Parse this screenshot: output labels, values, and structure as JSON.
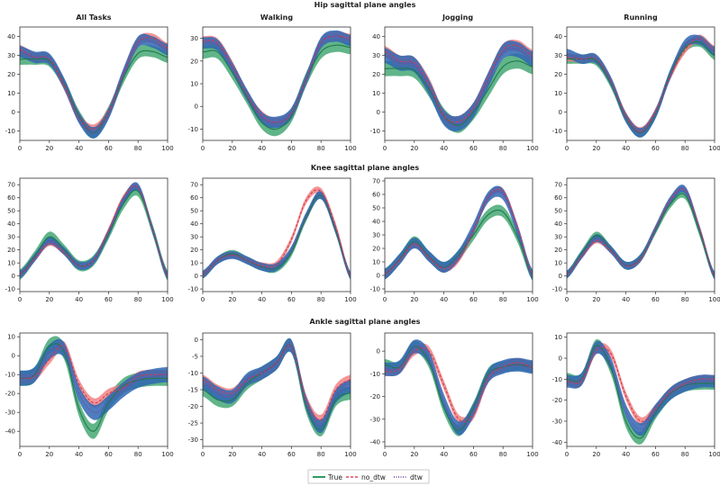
{
  "figure": {
    "row_titles": [
      "Hip sagittal plane angles",
      "Knee sagittal plane angles",
      "Ankle sagittal plane angles"
    ],
    "col_titles": [
      "All Tasks",
      "Walking",
      "Jogging",
      "Running"
    ]
  },
  "legend": {
    "items": [
      {
        "label": "True",
        "color": "#2e9a63",
        "style": "solid"
      },
      {
        "label": "no_dtw",
        "color": "#e8465f",
        "style": "dashed"
      },
      {
        "label": "dtw",
        "color": "#6a3d9a",
        "style": "dotted"
      }
    ]
  },
  "colors": {
    "true_band": "#3aa36b",
    "no_dtw_band": "#f07a7a",
    "dtw_band": "#2f66b3",
    "dtw_overlay": "#7b3fa0"
  },
  "chart_data": [
    {
      "type": "line",
      "joint": "Hip",
      "task": "All Tasks",
      "xlim": [
        0,
        100
      ],
      "ylim": [
        -15,
        45
      ],
      "yticks": [
        -10,
        0,
        10,
        20,
        30,
        40
      ],
      "xticks": [
        0,
        20,
        40,
        60,
        80,
        100
      ],
      "x": [
        0,
        10,
        20,
        30,
        40,
        50,
        60,
        70,
        80,
        90,
        100
      ],
      "series": [
        {
          "name": "True",
          "values": [
            28,
            28,
            27,
            15,
            -2,
            -11,
            0,
            18,
            31,
            32,
            29
          ],
          "spread": 3
        },
        {
          "name": "no_dtw",
          "values": [
            33,
            29,
            28,
            14,
            -3,
            -9,
            0,
            20,
            37,
            39,
            34
          ],
          "spread": 2.5
        },
        {
          "name": "dtw",
          "values": [
            32,
            29,
            28,
            15,
            -3,
            -11,
            -1,
            20,
            37,
            37,
            33
          ],
          "spread": 3
        }
      ]
    },
    {
      "type": "line",
      "joint": "Hip",
      "task": "Walking",
      "xlim": [
        0,
        100
      ],
      "ylim": [
        -15,
        35
      ],
      "yticks": [
        -10,
        0,
        10,
        20,
        30
      ],
      "xticks": [
        0,
        20,
        40,
        60,
        80,
        100
      ],
      "x": [
        0,
        10,
        20,
        30,
        40,
        50,
        60,
        70,
        80,
        90,
        100
      ],
      "series": [
        {
          "name": "True",
          "values": [
            24,
            24,
            15,
            4,
            -7,
            -10,
            -4,
            12,
            24,
            27,
            26
          ],
          "spread": 3
        },
        {
          "name": "no_dtw",
          "values": [
            29,
            28,
            18,
            5,
            -4,
            -7,
            -3,
            12,
            28,
            31,
            30
          ],
          "spread": 2
        },
        {
          "name": "dtw",
          "values": [
            28,
            27,
            17,
            5,
            -5,
            -7,
            -3,
            12,
            28,
            31,
            29
          ],
          "spread": 2.5
        }
      ]
    },
    {
      "type": "line",
      "joint": "Hip",
      "task": "Jogging",
      "xlim": [
        0,
        100
      ],
      "ylim": [
        -15,
        45
      ],
      "yticks": [
        -10,
        0,
        10,
        20,
        30,
        40
      ],
      "xticks": [
        0,
        20,
        40,
        60,
        80,
        100
      ],
      "x": [
        0,
        10,
        20,
        30,
        40,
        50,
        60,
        70,
        80,
        90,
        100
      ],
      "series": [
        {
          "name": "True",
          "values": [
            23,
            23,
            22,
            12,
            -2,
            -7,
            0,
            12,
            24,
            27,
            24
          ],
          "spread": 4
        },
        {
          "name": "no_dtw",
          "values": [
            32,
            27,
            26,
            15,
            -2,
            -5,
            2,
            18,
            33,
            35,
            30
          ],
          "spread": 3
        },
        {
          "name": "dtw",
          "values": [
            30,
            26,
            25,
            13,
            -3,
            -6,
            1,
            17,
            32,
            33,
            28
          ],
          "spread": 4
        }
      ]
    },
    {
      "type": "line",
      "joint": "Hip",
      "task": "Running",
      "xlim": [
        0,
        100
      ],
      "ylim": [
        -15,
        45
      ],
      "yticks": [
        -10,
        0,
        10,
        20,
        30,
        40
      ],
      "xticks": [
        0,
        20,
        40,
        60,
        80,
        100
      ],
      "x": [
        0,
        10,
        20,
        30,
        40,
        50,
        60,
        70,
        80,
        90,
        100
      ],
      "series": [
        {
          "name": "True",
          "values": [
            28,
            28,
            27,
            15,
            -3,
            -11,
            -1,
            20,
            34,
            37,
            30
          ],
          "spread": 2.5
        },
        {
          "name": "no_dtw",
          "values": [
            29,
            28,
            28,
            16,
            -2,
            -10,
            0,
            19,
            33,
            39,
            33
          ],
          "spread": 2
        },
        {
          "name": "dtw",
          "values": [
            31,
            28,
            28,
            16,
            -3,
            -11,
            -1,
            20,
            36,
            38,
            32
          ],
          "spread": 2.5
        }
      ]
    },
    {
      "type": "line",
      "joint": "Knee",
      "task": "All Tasks",
      "xlim": [
        0,
        100
      ],
      "ylim": [
        -12,
        75
      ],
      "yticks": [
        -10,
        0,
        10,
        20,
        30,
        40,
        50,
        60,
        70
      ],
      "xticks": [
        0,
        20,
        40,
        60,
        80,
        100
      ],
      "x": [
        0,
        10,
        20,
        30,
        40,
        50,
        60,
        70,
        80,
        90,
        100
      ],
      "series": [
        {
          "name": "True",
          "values": [
            1,
            15,
            30,
            20,
            8,
            12,
            32,
            55,
            65,
            35,
            0
          ],
          "spread": 4
        },
        {
          "name": "no_dtw",
          "values": [
            1,
            13,
            25,
            18,
            8,
            12,
            35,
            60,
            68,
            35,
            0
          ],
          "spread": 2
        },
        {
          "name": "dtw",
          "values": [
            1,
            14,
            27,
            19,
            8,
            12,
            33,
            58,
            68,
            35,
            0
          ],
          "spread": 3
        }
      ]
    },
    {
      "type": "line",
      "joint": "Knee",
      "task": "Walking",
      "xlim": [
        0,
        100
      ],
      "ylim": [
        -12,
        75
      ],
      "yticks": [
        -10,
        0,
        10,
        20,
        30,
        40,
        50,
        60,
        70
      ],
      "xticks": [
        0,
        20,
        40,
        60,
        80,
        100
      ],
      "x": [
        0,
        10,
        20,
        30,
        40,
        50,
        60,
        70,
        80,
        90,
        100
      ],
      "series": [
        {
          "name": "True",
          "values": [
            1,
            12,
            17,
            12,
            7,
            6,
            18,
            45,
            62,
            35,
            0
          ],
          "spread": 3
        },
        {
          "name": "no_dtw",
          "values": [
            1,
            12,
            16,
            12,
            8,
            9,
            28,
            58,
            65,
            38,
            0
          ],
          "spread": 2.5
        },
        {
          "name": "dtw",
          "values": [
            1,
            12,
            16,
            12,
            7,
            7,
            20,
            46,
            62,
            35,
            0
          ],
          "spread": 3
        }
      ]
    },
    {
      "type": "line",
      "joint": "Knee",
      "task": "Jogging",
      "xlim": [
        0,
        100
      ],
      "ylim": [
        -12,
        72
      ],
      "yticks": [
        -10,
        0,
        10,
        20,
        30,
        40,
        50,
        60,
        70
      ],
      "xticks": [
        0,
        20,
        40,
        60,
        80,
        100
      ],
      "x": [
        0,
        10,
        20,
        30,
        40,
        50,
        60,
        70,
        80,
        90,
        100
      ],
      "series": [
        {
          "name": "True",
          "values": [
            1,
            12,
            25,
            14,
            6,
            15,
            30,
            45,
            47,
            28,
            0
          ],
          "spread": 4
        },
        {
          "name": "no_dtw",
          "values": [
            1,
            11,
            23,
            13,
            5,
            12,
            33,
            58,
            62,
            35,
            0
          ],
          "spread": 2.5
        },
        {
          "name": "dtw",
          "values": [
            1,
            12,
            24,
            14,
            6,
            15,
            35,
            58,
            60,
            33,
            0
          ],
          "spread": 4
        }
      ]
    },
    {
      "type": "line",
      "joint": "Knee",
      "task": "Running",
      "xlim": [
        0,
        100
      ],
      "ylim": [
        -12,
        75
      ],
      "yticks": [
        -10,
        0,
        10,
        20,
        30,
        40,
        50,
        60,
        70
      ],
      "xticks": [
        0,
        20,
        40,
        60,
        80,
        100
      ],
      "x": [
        0,
        10,
        20,
        30,
        40,
        50,
        60,
        70,
        80,
        90,
        100
      ],
      "series": [
        {
          "name": "True",
          "values": [
            1,
            17,
            31,
            20,
            8,
            14,
            35,
            55,
            62,
            33,
            0
          ],
          "spread": 3
        },
        {
          "name": "no_dtw",
          "values": [
            1,
            15,
            27,
            19,
            8,
            13,
            36,
            58,
            66,
            36,
            0
          ],
          "spread": 2
        },
        {
          "name": "dtw",
          "values": [
            1,
            16,
            29,
            20,
            8,
            14,
            36,
            58,
            66,
            35,
            0
          ],
          "spread": 3
        }
      ]
    },
    {
      "type": "line",
      "joint": "Ankle",
      "task": "All Tasks",
      "xlim": [
        0,
        100
      ],
      "ylim": [
        -48,
        12
      ],
      "yticks": [
        -40,
        -30,
        -20,
        -10,
        0,
        10
      ],
      "xticks": [
        0,
        20,
        40,
        60,
        80,
        100
      ],
      "x": [
        0,
        10,
        20,
        30,
        40,
        50,
        60,
        70,
        80,
        90,
        100
      ],
      "series": [
        {
          "name": "True",
          "values": [
            -12,
            -10,
            5,
            2,
            -28,
            -40,
            -25,
            -16,
            -13,
            -12,
            -12
          ],
          "spread": 4
        },
        {
          "name": "no_dtw",
          "values": [
            -12,
            -11,
            -2,
            5,
            -15,
            -25,
            -20,
            -17,
            -11,
            -10,
            -10
          ],
          "spread": 2.5
        },
        {
          "name": "dtw",
          "values": [
            -12,
            -10,
            2,
            3,
            -20,
            -30,
            -25,
            -18,
            -13,
            -11,
            -10
          ],
          "spread": 4
        }
      ]
    },
    {
      "type": "line",
      "joint": "Ankle",
      "task": "Walking",
      "xlim": [
        0,
        100
      ],
      "ylim": [
        -32,
        2
      ],
      "yticks": [
        -30,
        -25,
        -20,
        -15,
        -10,
        -5,
        0
      ],
      "xticks": [
        0,
        20,
        40,
        60,
        80,
        100
      ],
      "x": [
        0,
        10,
        20,
        30,
        40,
        50,
        60,
        70,
        80,
        90,
        100
      ],
      "series": [
        {
          "name": "True",
          "values": [
            -15,
            -18,
            -18,
            -13,
            -10,
            -7,
            -2,
            -20,
            -27,
            -18,
            -16
          ],
          "spread": 2
        },
        {
          "name": "no_dtw",
          "values": [
            -12,
            -15,
            -16,
            -12,
            -10,
            -7,
            -2,
            -18,
            -24,
            -15,
            -12
          ],
          "spread": 1.5
        },
        {
          "name": "dtw",
          "values": [
            -13,
            -16,
            -17,
            -12,
            -10,
            -7,
            -2,
            -19,
            -26,
            -17,
            -14
          ],
          "spread": 2
        }
      ]
    },
    {
      "type": "line",
      "joint": "Ankle",
      "task": "Jogging",
      "xlim": [
        0,
        100
      ],
      "ylim": [
        -42,
        8
      ],
      "yticks": [
        -40,
        -30,
        -20,
        -10,
        0
      ],
      "xticks": [
        0,
        20,
        40,
        60,
        80,
        100
      ],
      "x": [
        0,
        10,
        20,
        30,
        40,
        50,
        60,
        70,
        80,
        90,
        100
      ],
      "series": [
        {
          "name": "True",
          "values": [
            -6,
            -7,
            2,
            -5,
            -25,
            -35,
            -25,
            -10,
            -7,
            -6,
            -7
          ],
          "spread": 2.5
        },
        {
          "name": "no_dtw",
          "values": [
            -9,
            -8,
            0,
            0,
            -15,
            -30,
            -28,
            -12,
            -7,
            -5,
            -7
          ],
          "spread": 2
        },
        {
          "name": "dtw",
          "values": [
            -8,
            -7,
            2,
            -3,
            -22,
            -34,
            -26,
            -11,
            -7,
            -6,
            -7
          ],
          "spread": 3
        }
      ]
    },
    {
      "type": "line",
      "joint": "Ankle",
      "task": "Running",
      "xlim": [
        0,
        100
      ],
      "ylim": [
        -42,
        12
      ],
      "yticks": [
        -40,
        -30,
        -20,
        -10,
        0,
        10
      ],
      "xticks": [
        0,
        20,
        40,
        60,
        80,
        100
      ],
      "x": [
        0,
        10,
        20,
        30,
        40,
        50,
        60,
        70,
        80,
        90,
        100
      ],
      "series": [
        {
          "name": "True",
          "values": [
            -10,
            -10,
            6,
            -5,
            -30,
            -38,
            -26,
            -17,
            -13,
            -12,
            -12
          ],
          "spread": 3
        },
        {
          "name": "no_dtw",
          "values": [
            -11,
            -11,
            4,
            2,
            -18,
            -30,
            -24,
            -16,
            -12,
            -10,
            -10
          ],
          "spread": 2
        },
        {
          "name": "dtw",
          "values": [
            -11,
            -10,
            5,
            -3,
            -25,
            -34,
            -25,
            -17,
            -13,
            -11,
            -11
          ],
          "spread": 3
        }
      ]
    }
  ]
}
